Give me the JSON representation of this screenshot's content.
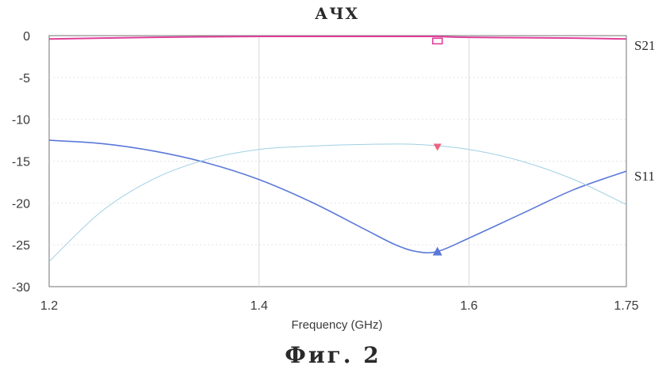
{
  "chart_data": {
    "type": "line",
    "title": "АЧХ",
    "caption": "Фиг. 2",
    "xlabel": "Frequency (GHz)",
    "ylabel": "",
    "xlim": [
      1.2,
      1.75
    ],
    "ylim": [
      -30,
      0
    ],
    "x_ticks": [
      {
        "value": 1.2,
        "label": "1.2"
      },
      {
        "value": 1.4,
        "label": "1.4"
      },
      {
        "value": 1.6,
        "label": "1.6"
      },
      {
        "value": 1.75,
        "label": "1.75"
      }
    ],
    "y_ticks": [
      {
        "value": 0,
        "label": "0"
      },
      {
        "value": -5,
        "label": "-5"
      },
      {
        "value": -10,
        "label": "-10"
      },
      {
        "value": -15,
        "label": "-15"
      },
      {
        "value": -20,
        "label": "-20"
      },
      {
        "value": -25,
        "label": "-25"
      },
      {
        "value": -30,
        "label": "-30"
      }
    ],
    "grid": true,
    "series": [
      {
        "name": "S21",
        "color": "#e0409a",
        "x": [
          1.2,
          1.3,
          1.4,
          1.5,
          1.565,
          1.6,
          1.7,
          1.75
        ],
        "y": [
          -0.4,
          -0.2,
          -0.1,
          -0.1,
          -0.1,
          -0.2,
          -0.3,
          -0.4
        ],
        "marker": {
          "x": 1.57,
          "y": -0.6,
          "shape": "square"
        }
      },
      {
        "name": "S11",
        "color": "#5a78d8",
        "x": [
          1.2,
          1.25,
          1.3,
          1.35,
          1.4,
          1.45,
          1.5,
          1.53,
          1.55,
          1.57,
          1.6,
          1.65,
          1.7,
          1.75
        ],
        "y": [
          -12.5,
          -12.9,
          -13.8,
          -15.2,
          -17.2,
          -19.9,
          -23.1,
          -25.0,
          -25.8,
          -25.8,
          -24.2,
          -21.3,
          -18.4,
          -16.2
        ],
        "marker": {
          "x": 1.57,
          "y": -25.8,
          "shape": "triangle-up"
        }
      },
      {
        "name": "",
        "color": "#9fcfe3",
        "x": [
          1.2,
          1.25,
          1.3,
          1.35,
          1.4,
          1.45,
          1.5,
          1.55,
          1.6,
          1.65,
          1.7,
          1.75
        ],
        "y": [
          -27.0,
          -21.0,
          -17.1,
          -14.8,
          -13.6,
          -13.2,
          -13.0,
          -13.0,
          -13.6,
          -15.0,
          -17.2,
          -20.2
        ],
        "marker": {
          "x": 1.57,
          "y": -13.3,
          "shape": "triangle-down",
          "color": "#f06080"
        }
      }
    ]
  }
}
